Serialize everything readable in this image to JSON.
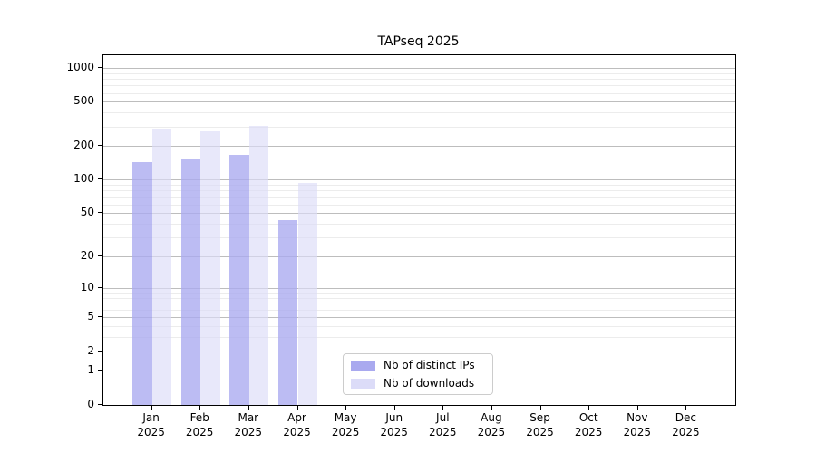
{
  "title": "TAPseq 2025",
  "chart_data": {
    "type": "bar",
    "title": "TAPseq 2025",
    "categories": [
      "Jan",
      "Feb",
      "Mar",
      "Apr",
      "May",
      "Jun",
      "Jul",
      "Aug",
      "Sep",
      "Oct",
      "Nov",
      "Dec"
    ],
    "category_year_sublabel": "2025",
    "series": [
      {
        "name": "Nb of distinct IPs",
        "color": "#a9a9ef",
        "values": [
          145,
          152,
          167,
          43,
          0,
          0,
          0,
          0,
          0,
          0,
          0,
          0
        ]
      },
      {
        "name": "Nb of downloads",
        "color": "#dcdcf8",
        "values": [
          290,
          270,
          305,
          93,
          0,
          0,
          0,
          0,
          0,
          0,
          0,
          0
        ]
      }
    ],
    "xlabel": "",
    "ylabel": "",
    "yscale": "log1p",
    "ylim": [
      0,
      1200
    ],
    "y_major_ticks": [
      0,
      1,
      2,
      5,
      10,
      20,
      50,
      100,
      200,
      500,
      1000
    ],
    "y_minor_ticks": [
      3,
      4,
      6,
      7,
      8,
      9,
      30,
      40,
      60,
      70,
      80,
      90,
      300,
      400,
      600,
      700,
      800,
      900
    ],
    "grid": "horizontal",
    "legend_position": "lower-center-inside"
  },
  "legend": {
    "item_0": "Nb of distinct IPs",
    "item_1": "Nb of downloads"
  }
}
